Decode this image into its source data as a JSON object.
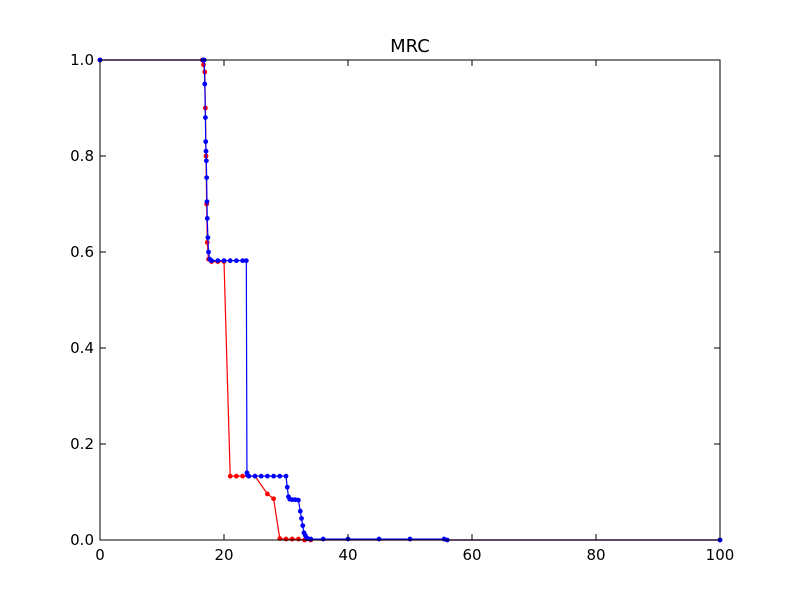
{
  "chart_data": {
    "type": "line",
    "title": "MRC",
    "xlabel": "",
    "ylabel": "",
    "xlim": [
      0,
      100
    ],
    "ylim": [
      0,
      1
    ],
    "grid": false,
    "x_ticks": [
      "0",
      "20",
      "40",
      "60",
      "80",
      "100"
    ],
    "y_ticks": [
      "0.0",
      "0.2",
      "0.4",
      "0.6",
      "0.8",
      "1.0"
    ],
    "series": [
      {
        "color": "#ff0000",
        "x": [
          0,
          16.5,
          16.7,
          16.9,
          17.0,
          17.1,
          17.2,
          17.3,
          17.5,
          18.0,
          19.0,
          20.0,
          21.0,
          22.0,
          23.0,
          24.0,
          25.0,
          27.0,
          28.0,
          29.0,
          30.0,
          31.0,
          32.0,
          33.0,
          34.0,
          100
        ],
        "y": [
          1.0,
          1.0,
          0.99,
          0.975,
          0.9,
          0.8,
          0.7,
          0.62,
          0.585,
          0.58,
          0.58,
          0.58,
          0.133,
          0.133,
          0.133,
          0.133,
          0.133,
          0.096,
          0.086,
          0.003,
          0.002,
          0.002,
          0.002,
          0.0,
          0.0,
          0.0
        ]
      },
      {
        "color": "#0000ff",
        "x": [
          0,
          16.6,
          16.8,
          16.9,
          17.0,
          17.05,
          17.1,
          17.15,
          17.2,
          17.25,
          17.3,
          17.4,
          17.5,
          17.7,
          18.0,
          19.0,
          20.0,
          21.0,
          22.0,
          23.0,
          23.6,
          23.7,
          23.8,
          24.0,
          25.0,
          26.0,
          27.0,
          28.0,
          29.0,
          30.0,
          30.2,
          30.4,
          30.6,
          31.0,
          31.5,
          32.0,
          32.3,
          32.5,
          32.7,
          32.9,
          33.1,
          33.3,
          33.5,
          34.0,
          36.0,
          40.0,
          45.0,
          50.0,
          55.5,
          56.0,
          100
        ],
        "y": [
          1.0,
          1.0,
          1.0,
          0.95,
          0.88,
          0.83,
          0.81,
          0.79,
          0.755,
          0.705,
          0.67,
          0.63,
          0.6,
          0.585,
          0.582,
          0.582,
          0.582,
          0.582,
          0.582,
          0.582,
          0.582,
          0.14,
          0.135,
          0.133,
          0.133,
          0.133,
          0.133,
          0.133,
          0.133,
          0.133,
          0.11,
          0.09,
          0.085,
          0.084,
          0.084,
          0.083,
          0.06,
          0.045,
          0.03,
          0.015,
          0.01,
          0.005,
          0.003,
          0.002,
          0.002,
          0.002,
          0.002,
          0.002,
          0.002,
          0.0,
          0.0
        ]
      }
    ]
  }
}
